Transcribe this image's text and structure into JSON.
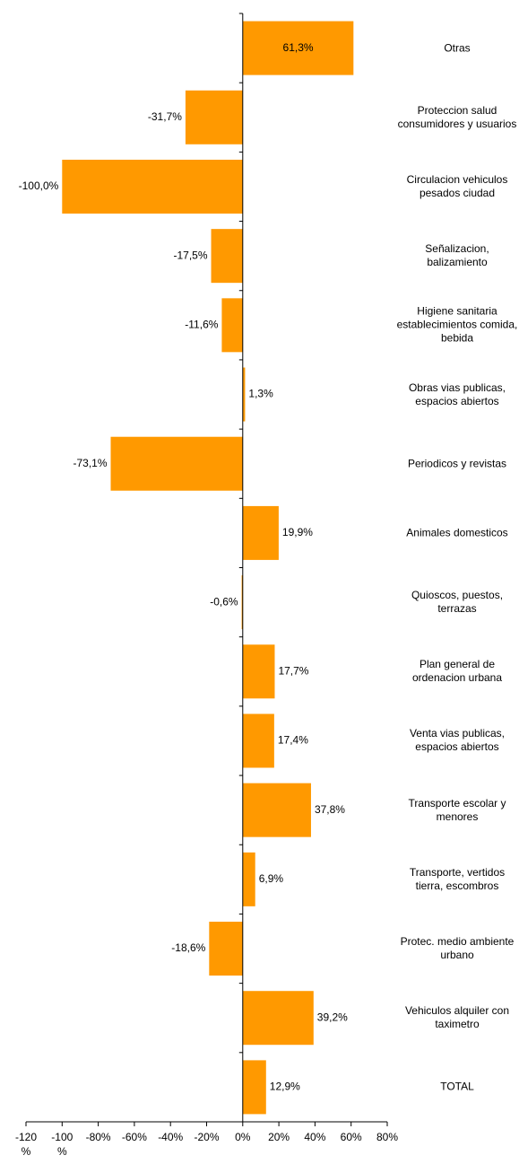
{
  "chart_data": {
    "type": "bar",
    "orientation": "horizontal",
    "color": "#ff9900",
    "categories": [
      "Otras",
      "Proteccion salud consumidores y usuarios",
      "Circulacion vehiculos pesados ciudad",
      "Señalizacion, balizamiento",
      "Higiene sanitaria establecimientos comida, bebida",
      "Obras vias publicas, espacios abiertos",
      "Periodicos y revistas",
      "Animales domesticos",
      "Quioscos, puestos, terrazas",
      "Plan general de ordenacion urbana",
      "Venta vias publicas, espacios abiertos",
      "Transporte escolar y menores",
      "Transporte, vertidos tierra, escombros",
      "Protec. medio ambiente urbano",
      "Vehiculos alquiler con taximetro",
      "TOTAL"
    ],
    "values": [
      61.3,
      -31.7,
      -100.0,
      -17.5,
      -11.6,
      1.3,
      -73.1,
      19.9,
      -0.6,
      17.7,
      17.4,
      37.8,
      6.9,
      -18.6,
      39.2,
      12.9
    ],
    "value_labels": [
      "61,3%",
      "-31,7%",
      "-100,0%",
      "-17,5%",
      "-11,6%",
      "1,3%",
      "-73,1%",
      "19,9%",
      "-0,6%",
      "17,7%",
      "17,4%",
      "37,8%",
      "6,9%",
      "-18,6%",
      "39,2%",
      "12,9%"
    ],
    "xlim": [
      -120,
      80
    ],
    "xticks": [
      {
        "value": -120,
        "label": "-120 %"
      },
      {
        "value": -100,
        "label": "-100 %"
      },
      {
        "value": -80,
        "label": "-80%"
      },
      {
        "value": -60,
        "label": "-60%"
      },
      {
        "value": -40,
        "label": "-40%"
      },
      {
        "value": -20,
        "label": "-20%"
      },
      {
        "value": 0,
        "label": "0%"
      },
      {
        "value": 20,
        "label": "20%"
      },
      {
        "value": 40,
        "label": "40%"
      },
      {
        "value": 60,
        "label": "60%"
      },
      {
        "value": 80,
        "label": "80%"
      }
    ]
  }
}
